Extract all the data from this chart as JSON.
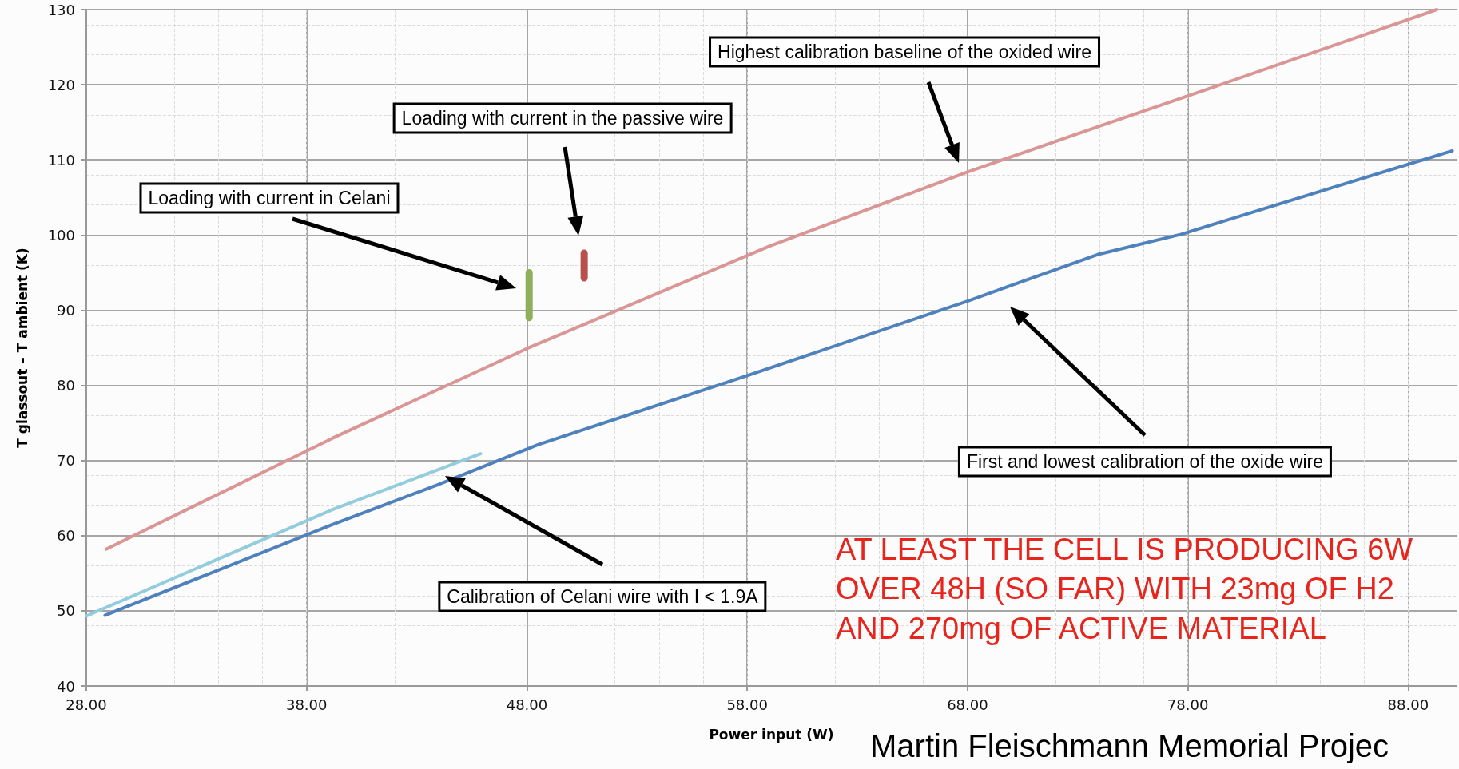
{
  "chart_data": {
    "type": "line",
    "xlabel": "Power input (W)",
    "ylabel": "T glassout – T ambient (K)",
    "xlim": [
      28,
      90.2
    ],
    "ylim": [
      40,
      130
    ],
    "xticks": [
      {
        "value": 28,
        "label": "28.00"
      },
      {
        "value": 38,
        "label": "38.00"
      },
      {
        "value": 48,
        "label": "48.00"
      },
      {
        "value": 58,
        "label": "58.00"
      },
      {
        "value": 68,
        "label": "68.00"
      },
      {
        "value": 78,
        "label": "78.00"
      },
      {
        "value": 88,
        "label": "88.00"
      }
    ],
    "yticks": [
      40,
      50,
      60,
      70,
      80,
      90,
      100,
      110,
      120,
      130
    ],
    "grid": true,
    "marker": "none",
    "line_style": "solid",
    "series": [
      {
        "color": "#d99694",
        "x": [
          28.9,
          39.2,
          48,
          59,
          68,
          74,
          78,
          89.3
        ],
        "values": [
          58.2,
          73,
          84.9,
          98.5,
          108.4,
          114.5,
          118.5,
          130
        ]
      },
      {
        "color": "#4f81bd",
        "x": [
          28.85,
          39.1,
          43.9,
          48.5,
          58,
          68,
          73.9,
          77.7,
          84.1,
          90
        ],
        "values": [
          49.4,
          61.4,
          66.7,
          72.1,
          81.3,
          91.2,
          97.4,
          100.1,
          105.9,
          111.2
        ]
      },
      {
        "color": "#93cddd",
        "x": [
          28,
          31.7,
          39.2,
          45.9
        ],
        "values": [
          49.3,
          54,
          63.5,
          70.9
        ]
      },
      {
        "color": "#8eb05a",
        "x": [
          48.1,
          48.1
        ],
        "values": [
          89,
          95
        ]
      },
      {
        "color": "#b8504b",
        "x": [
          50.6,
          50.6
        ],
        "values": [
          94.3,
          97.6
        ]
      }
    ],
    "annotations": [
      "Loading with current in Celani",
      "Loading with current in the passive wire",
      "Highest calibration baseline of the oxided wire",
      "First and lowest calibration of the oxide wire",
      "Calibration of Celani wire with I < 1.9A",
      "AT LEAST THE CELL IS PRODUCING 6W\nOVER 48H (SO FAR) WITH 23mg OF H2\nAND 270mg OF ACTIVE MATERIAL",
      "Martin Fleischmann Memorial Projec"
    ]
  }
}
